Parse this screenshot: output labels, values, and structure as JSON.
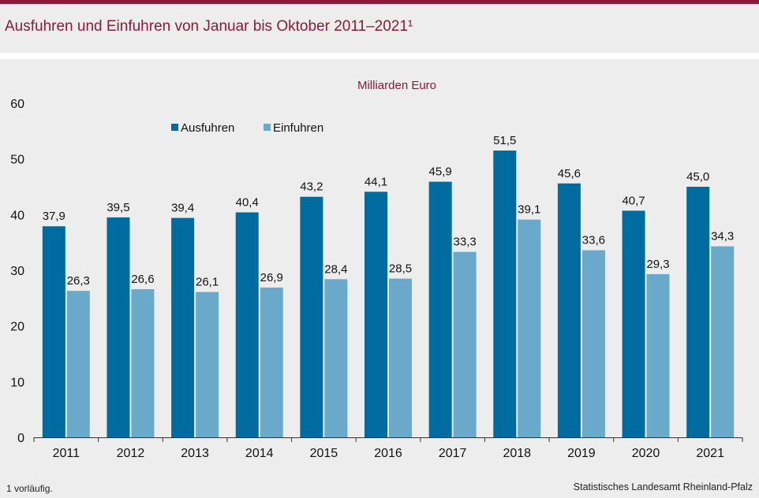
{
  "header": {
    "title": "Ausfuhren und Einfuhren von Januar bis Oktober 2011–2021¹"
  },
  "footer": {
    "footnote": "1 vorläufig.",
    "source": "Statistisches Landesamt Rheinland-Pfalz"
  },
  "colors": {
    "accent": "#8b1a3a",
    "ausfuhren": "#006b9f",
    "einfuhren": "#6aa9c9",
    "background": "#ededed"
  },
  "chart_data": {
    "type": "bar",
    "unit_label": "Milliarden Euro",
    "categories": [
      "2011",
      "2012",
      "2013",
      "2014",
      "2015",
      "2016",
      "2017",
      "2018",
      "2019",
      "2020",
      "2021"
    ],
    "series": [
      {
        "name": "Ausfuhren",
        "values": [
          37.9,
          39.5,
          39.4,
          40.4,
          43.2,
          44.1,
          45.9,
          51.5,
          45.6,
          40.7,
          45.0
        ],
        "labels": [
          "37,9",
          "39,5",
          "39,4",
          "40,4",
          "43,2",
          "44,1",
          "45,9",
          "51,5",
          "45,6",
          "40,7",
          "45,0"
        ]
      },
      {
        "name": "Einfuhren",
        "values": [
          26.3,
          26.6,
          26.1,
          26.9,
          28.4,
          28.5,
          33.3,
          39.1,
          33.6,
          29.3,
          34.3
        ],
        "labels": [
          "26,3",
          "26,6",
          "26,1",
          "26,9",
          "28,4",
          "28,5",
          "33,3",
          "39,1",
          "33,6",
          "29,3",
          "34,3"
        ]
      }
    ],
    "y_ticks": [
      "0",
      "10",
      "20",
      "30",
      "40",
      "50",
      "60"
    ],
    "ylim": [
      0,
      60
    ],
    "grid": false,
    "legend_position": "top-left"
  }
}
